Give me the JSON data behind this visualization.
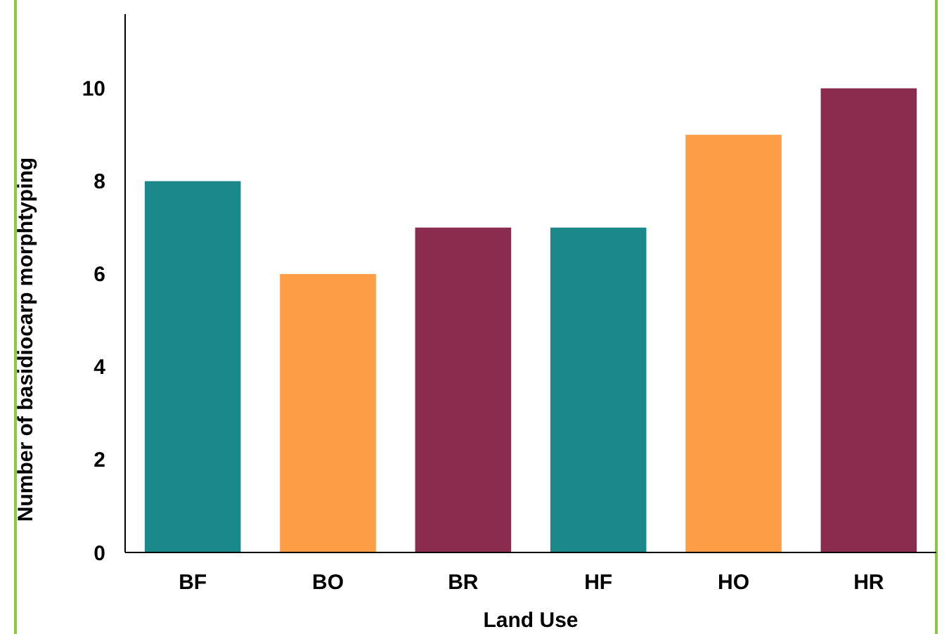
{
  "chart_data": {
    "type": "bar",
    "xlabel": "Land Use",
    "ylabel": "Number of basidiocarp morphtyping",
    "categories": [
      "BF",
      "BO",
      "BR",
      "HF",
      "HO",
      "HR"
    ],
    "values": [
      8,
      6,
      7,
      7,
      9,
      10
    ],
    "colors": [
      "#1b898b",
      "#fd9e46",
      "#8b2c4e",
      "#1b898b",
      "#fd9e46",
      "#8b2c4e"
    ],
    "ylim": [
      0,
      11.6
    ],
    "yticks": [
      0,
      2,
      4,
      6,
      8,
      10
    ],
    "grid": false
  }
}
